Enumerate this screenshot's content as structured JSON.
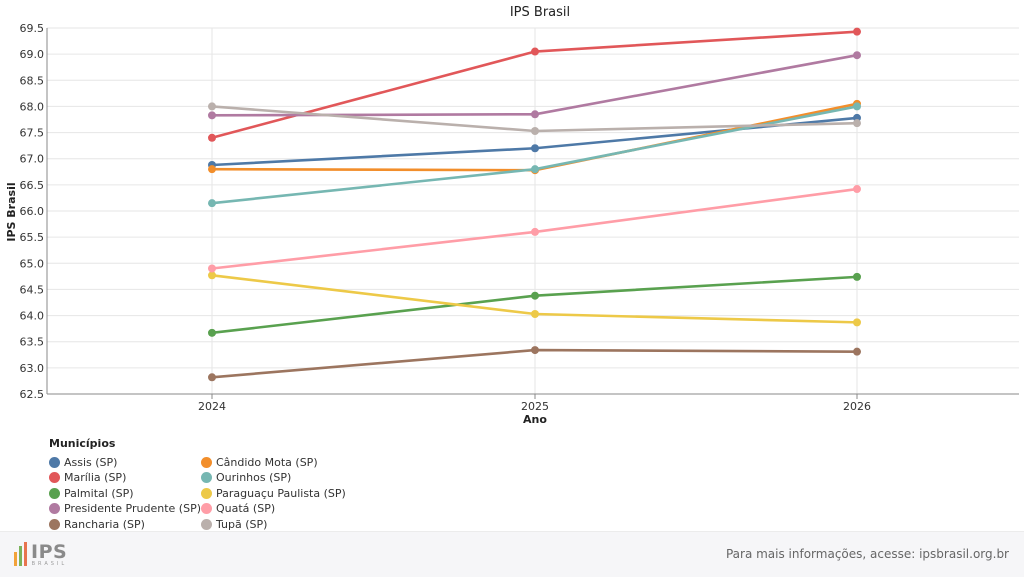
{
  "chart_data": {
    "type": "line",
    "title": "IPS Brasil",
    "xlabel": "Ano",
    "ylabel": "IPS Brasil",
    "x": [
      "2024",
      "2025",
      "2026"
    ],
    "ylim": [
      62.5,
      69.5
    ],
    "yticks": [
      "62.5",
      "63.0",
      "63.5",
      "64.0",
      "64.5",
      "65.0",
      "65.5",
      "66.0",
      "66.5",
      "67.0",
      "67.5",
      "68.0",
      "68.5",
      "69.0",
      "69.5"
    ],
    "grid": true,
    "legend_title": "Municípios",
    "legend_position": "bottom-left",
    "series": [
      {
        "name": "Assis (SP)",
        "color": "#4e79a7",
        "values": [
          66.88,
          67.2,
          67.78
        ]
      },
      {
        "name": "Cândido Mota (SP)",
        "color": "#f28e2b",
        "values": [
          66.8,
          66.78,
          68.05
        ]
      },
      {
        "name": "Marília (SP)",
        "color": "#e15759",
        "values": [
          67.4,
          69.05,
          69.43
        ]
      },
      {
        "name": "Ourinhos (SP)",
        "color": "#76b7b2",
        "values": [
          66.15,
          66.8,
          68.0
        ]
      },
      {
        "name": "Palmital (SP)",
        "color": "#59a14f",
        "values": [
          63.67,
          64.38,
          64.74
        ]
      },
      {
        "name": "Paraguaçu Paulista (SP)",
        "color": "#edc948",
        "values": [
          64.77,
          64.03,
          63.87
        ]
      },
      {
        "name": "Presidente Prudente (SP)",
        "color": "#b07aa1",
        "values": [
          67.83,
          67.85,
          68.98
        ]
      },
      {
        "name": "Quatá (SP)",
        "color": "#ff9da7",
        "values": [
          64.9,
          65.6,
          66.42
        ]
      },
      {
        "name": "Rancharia (SP)",
        "color": "#9c755f",
        "values": [
          62.82,
          63.34,
          63.31
        ]
      },
      {
        "name": "Tupã (SP)",
        "color": "#bab0ac",
        "values": [
          68.0,
          67.53,
          67.68
        ]
      }
    ]
  },
  "footer": {
    "logo_text": "IPS",
    "logo_sub": "BRASIL",
    "note": "Para mais informações, acesse: ipsbrasil.org.br"
  }
}
